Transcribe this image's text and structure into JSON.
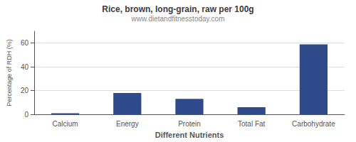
{
  "chart_data": {
    "type": "bar",
    "title": "Rice, brown, long-grain, raw per 100g",
    "subtitle": "www.dietandfitnesstoday.com",
    "xlabel": "Different Nutrients",
    "ylabel": "Percentage of RDH (%)",
    "categories": [
      "Calcium",
      "Energy",
      "Protein",
      "Total Fat",
      "Carbohydrate"
    ],
    "values": [
      1,
      18,
      13,
      6,
      59
    ],
    "color": "#2e4a8a",
    "ylim": [
      0,
      70
    ],
    "yticks": [
      0,
      20,
      40,
      60
    ],
    "grid": true
  }
}
